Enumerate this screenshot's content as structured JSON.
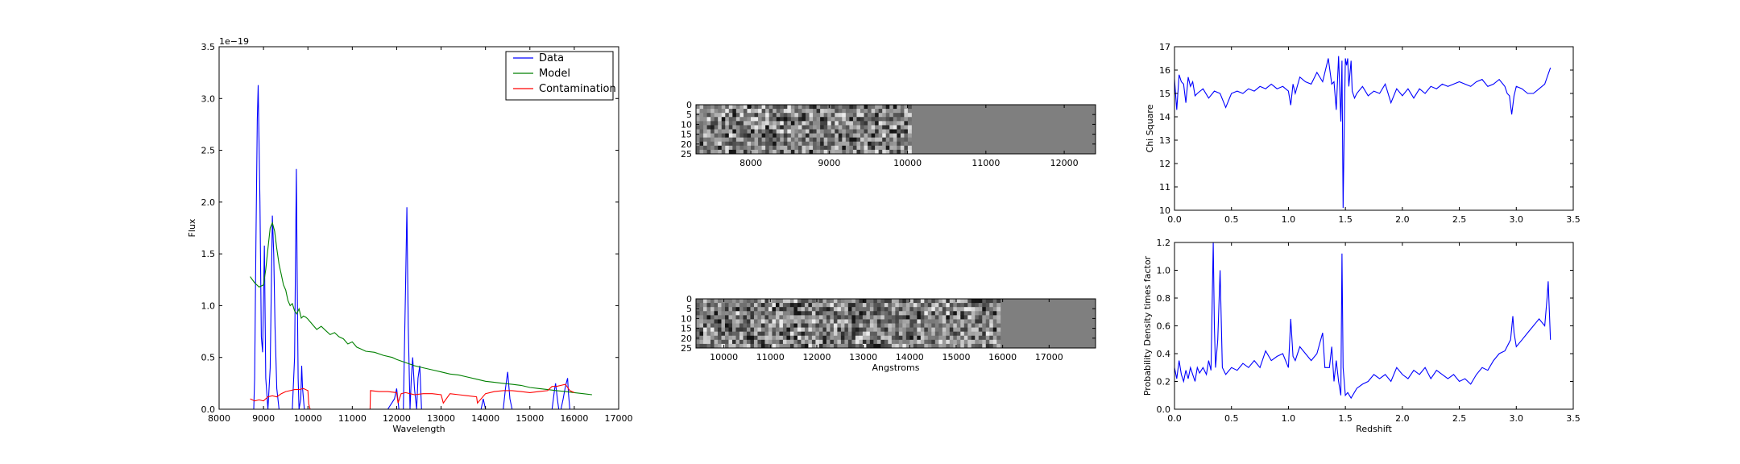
{
  "chart_data": [
    {
      "type": "line",
      "xlabel": "Wavelength",
      "ylabel": "Flux",
      "offset_text": "1e−19",
      "xlim": [
        8000,
        17000
      ],
      "ylim": [
        0,
        3.5
      ],
      "xticks": [
        8000,
        9000,
        10000,
        11000,
        12000,
        13000,
        14000,
        15000,
        16000,
        17000
      ],
      "yticks": [
        "0.0",
        "0.5",
        "1.0",
        "1.5",
        "2.0",
        "2.5",
        "3.0",
        "3.5"
      ],
      "legend_position": "top-right",
      "series": [
        {
          "name": "Data",
          "color": "#0000ff",
          "x": [
            8700,
            8780,
            8800,
            8830,
            8860,
            8880,
            8920,
            8950,
            8980,
            9020,
            9050,
            9100,
            9150,
            9200,
            9230,
            9260,
            9300,
            9350,
            9400,
            9450,
            9500,
            9550,
            9600,
            9650,
            9700,
            9740,
            9760,
            9780,
            9800,
            9840,
            9860,
            9880,
            9920,
            10000,
            10200,
            11800,
            11950,
            12000,
            12050,
            12150,
            12200,
            12230,
            12260,
            12300,
            12330,
            12360,
            12400,
            12450,
            12480,
            12520,
            12560,
            13000,
            13900,
            13950,
            14000,
            14400,
            14450,
            14500,
            14550,
            14600,
            14700,
            15400,
            15500,
            15560,
            15580,
            15620,
            15650,
            15700,
            15750,
            15800,
            15850,
            15870,
            15900,
            15960,
            16000,
            16400
          ],
          "y": [
            0,
            0,
            0.3,
            1.6,
            2.8,
            3.13,
            2.0,
            0.7,
            0.55,
            1.58,
            0.3,
            0,
            0.4,
            1.87,
            1.5,
            0.8,
            0.2,
            0,
            0,
            0,
            0,
            0,
            0,
            0,
            0.5,
            2.32,
            1.2,
            0.3,
            0,
            0.1,
            0.42,
            0.2,
            0,
            0,
            0,
            0,
            0.1,
            0.2,
            0,
            0,
            1.2,
            1.95,
            0.8,
            0,
            0.3,
            0.5,
            0.2,
            0,
            0.3,
            0.42,
            0,
            0,
            0,
            0.1,
            0,
            0,
            0.2,
            0.36,
            0.1,
            0,
            0,
            0,
            0,
            0.2,
            0.25,
            0.1,
            0,
            0,
            0.1,
            0.22,
            0.3,
            0.15,
            0,
            0,
            0,
            0
          ]
        },
        {
          "name": "Model",
          "color": "#008000",
          "x": [
            8700,
            8800,
            8900,
            9000,
            9050,
            9100,
            9150,
            9200,
            9250,
            9300,
            9350,
            9400,
            9450,
            9500,
            9550,
            9600,
            9650,
            9700,
            9750,
            9800,
            9850,
            9900,
            9950,
            10000,
            10100,
            10200,
            10300,
            10400,
            10500,
            10600,
            10700,
            10800,
            10900,
            11000,
            11100,
            11200,
            11300,
            11500,
            11700,
            11900,
            12000,
            12200,
            12400,
            12600,
            12800,
            13000,
            13200,
            13400,
            13600,
            13800,
            14000,
            14200,
            14400,
            14600,
            14800,
            15000,
            15200,
            15400,
            15600,
            15800,
            16000,
            16200,
            16400
          ],
          "y": [
            1.28,
            1.22,
            1.18,
            1.2,
            1.35,
            1.55,
            1.75,
            1.8,
            1.72,
            1.55,
            1.4,
            1.3,
            1.2,
            1.15,
            1.05,
            1.0,
            1.02,
            0.95,
            0.92,
            0.97,
            0.88,
            0.9,
            0.89,
            0.87,
            0.82,
            0.77,
            0.8,
            0.76,
            0.72,
            0.74,
            0.7,
            0.68,
            0.63,
            0.65,
            0.6,
            0.58,
            0.56,
            0.55,
            0.52,
            0.5,
            0.48,
            0.45,
            0.42,
            0.4,
            0.38,
            0.36,
            0.34,
            0.33,
            0.31,
            0.29,
            0.27,
            0.26,
            0.25,
            0.24,
            0.23,
            0.21,
            0.2,
            0.19,
            0.18,
            0.17,
            0.16,
            0.15,
            0.14
          ]
        },
        {
          "name": "Contamination",
          "color": "#ff0000",
          "x": [
            8700,
            8800,
            8900,
            9000,
            9100,
            9200,
            9300,
            9400,
            9500,
            9600,
            9700,
            9800,
            9900,
            10000,
            10020,
            10050,
            11400,
            11410,
            11600,
            11800,
            12000,
            12030,
            12100,
            12200,
            12300,
            12400,
            12600,
            12800,
            13000,
            13050,
            13200,
            13400,
            13600,
            13800,
            13820,
            14000,
            14200,
            14400,
            14600,
            14800,
            15000,
            15200,
            15400,
            15500,
            15600,
            15700,
            15800,
            15900,
            16000
          ],
          "y": [
            0.1,
            0.08,
            0.09,
            0.08,
            0.12,
            0.13,
            0.12,
            0.15,
            0.17,
            0.18,
            0.19,
            0.19,
            0.2,
            0.18,
            0.05,
            0,
            0,
            0.18,
            0.17,
            0.17,
            0.16,
            0.06,
            0.15,
            0.16,
            0.15,
            0.14,
            0.15,
            0.15,
            0.14,
            0.06,
            0.15,
            0.14,
            0.13,
            0.12,
            0.06,
            0.15,
            0.17,
            0.18,
            0.18,
            0.17,
            0.16,
            0.17,
            0.18,
            0.22,
            0.22,
            0.23,
            0.24,
            0.18,
            0.16
          ]
        }
      ]
    },
    {
      "type": "heatmap",
      "xlim": [
        7300,
        12400
      ],
      "ylim": [
        25,
        0
      ],
      "xticks": [
        8000,
        9000,
        10000,
        11000,
        12000
      ],
      "yticks": [
        0,
        5,
        10,
        15,
        20,
        25
      ],
      "noise_end": 10050,
      "grey": "#7f7f7f"
    },
    {
      "type": "heatmap",
      "xlabel": "Angstroms",
      "xlim": [
        9400,
        18000
      ],
      "ylim": [
        25,
        0
      ],
      "xticks": [
        10000,
        11000,
        12000,
        13000,
        14000,
        15000,
        16000,
        17000
      ],
      "yticks": [
        0,
        5,
        10,
        15,
        20,
        25
      ],
      "noise_end": 15950,
      "grey": "#7f7f7f"
    },
    {
      "type": "line",
      "ylabel": "Chi Square",
      "xlim": [
        0,
        3.5
      ],
      "ylim": [
        10,
        17
      ],
      "xticks": [
        "0.0",
        "0.5",
        "1.0",
        "1.5",
        "2.0",
        "2.5",
        "3.0",
        "3.5"
      ],
      "yticks": [
        10,
        11,
        12,
        13,
        14,
        15,
        16,
        17
      ],
      "series": [
        {
          "color": "#0000ff",
          "x": [
            0.0,
            0.02,
            0.04,
            0.06,
            0.08,
            0.1,
            0.12,
            0.14,
            0.16,
            0.18,
            0.2,
            0.25,
            0.3,
            0.35,
            0.4,
            0.45,
            0.5,
            0.55,
            0.6,
            0.65,
            0.7,
            0.75,
            0.8,
            0.85,
            0.9,
            0.95,
            1.0,
            1.02,
            1.04,
            1.06,
            1.1,
            1.15,
            1.2,
            1.25,
            1.3,
            1.32,
            1.35,
            1.38,
            1.4,
            1.42,
            1.44,
            1.46,
            1.47,
            1.48,
            1.49,
            1.5,
            1.51,
            1.52,
            1.53,
            1.55,
            1.56,
            1.58,
            1.6,
            1.65,
            1.7,
            1.75,
            1.8,
            1.85,
            1.9,
            1.95,
            2.0,
            2.05,
            2.1,
            2.15,
            2.2,
            2.25,
            2.3,
            2.35,
            2.4,
            2.45,
            2.5,
            2.55,
            2.6,
            2.65,
            2.7,
            2.75,
            2.8,
            2.85,
            2.9,
            2.92,
            2.94,
            2.96,
            2.98,
            3.0,
            3.05,
            3.1,
            3.15,
            3.2,
            3.25,
            3.3
          ],
          "y": [
            15.6,
            14.3,
            15.8,
            15.5,
            15.4,
            14.6,
            15.7,
            15.3,
            15.5,
            14.9,
            15.0,
            15.2,
            14.8,
            15.1,
            15.0,
            14.4,
            15.0,
            15.1,
            15.0,
            15.2,
            15.1,
            15.3,
            15.2,
            15.4,
            15.2,
            15.3,
            15.1,
            14.5,
            15.4,
            15.0,
            15.7,
            15.5,
            15.4,
            15.9,
            15.5,
            15.9,
            16.5,
            15.4,
            15.5,
            14.3,
            16.6,
            13.8,
            16.4,
            10.1,
            13.5,
            16.5,
            16.2,
            16.5,
            15.3,
            16.4,
            15.1,
            14.8,
            15.0,
            15.3,
            14.9,
            15.1,
            15.0,
            15.4,
            14.6,
            15.2,
            14.9,
            15.2,
            14.8,
            15.2,
            15.0,
            15.3,
            15.2,
            15.4,
            15.3,
            15.4,
            15.5,
            15.4,
            15.3,
            15.5,
            15.6,
            15.3,
            15.4,
            15.6,
            15.3,
            15.0,
            14.9,
            14.1,
            14.9,
            15.3,
            15.2,
            15.0,
            15.0,
            15.2,
            15.4,
            16.1
          ]
        }
      ]
    },
    {
      "type": "line",
      "xlabel": "Redshift",
      "ylabel": "Probability Density times factor",
      "xlim": [
        0,
        3.5
      ],
      "ylim": [
        0,
        1.2
      ],
      "xticks": [
        "0.0",
        "0.5",
        "1.0",
        "1.5",
        "2.0",
        "2.5",
        "3.0",
        "3.5"
      ],
      "yticks": [
        "0.0",
        "0.2",
        "0.4",
        "0.6",
        "0.8",
        "1.0",
        "1.2"
      ],
      "series": [
        {
          "color": "#0000ff",
          "x": [
            0.0,
            0.02,
            0.04,
            0.06,
            0.08,
            0.1,
            0.12,
            0.14,
            0.16,
            0.18,
            0.2,
            0.22,
            0.25,
            0.28,
            0.3,
            0.32,
            0.34,
            0.35,
            0.36,
            0.38,
            0.4,
            0.42,
            0.45,
            0.5,
            0.55,
            0.6,
            0.65,
            0.7,
            0.75,
            0.8,
            0.85,
            0.9,
            0.95,
            1.0,
            1.02,
            1.04,
            1.06,
            1.1,
            1.15,
            1.2,
            1.25,
            1.3,
            1.32,
            1.34,
            1.36,
            1.38,
            1.4,
            1.42,
            1.44,
            1.46,
            1.47,
            1.48,
            1.5,
            1.52,
            1.55,
            1.6,
            1.65,
            1.7,
            1.75,
            1.8,
            1.85,
            1.9,
            1.95,
            2.0,
            2.05,
            2.1,
            2.15,
            2.2,
            2.25,
            2.3,
            2.35,
            2.4,
            2.45,
            2.5,
            2.55,
            2.6,
            2.65,
            2.7,
            2.75,
            2.8,
            2.85,
            2.9,
            2.95,
            2.97,
            2.98,
            3.0,
            3.05,
            3.1,
            3.15,
            3.2,
            3.25,
            3.27,
            3.28,
            3.3
          ],
          "y": [
            0.3,
            0.22,
            0.35,
            0.25,
            0.2,
            0.28,
            0.22,
            0.3,
            0.25,
            0.2,
            0.3,
            0.26,
            0.3,
            0.25,
            0.35,
            0.28,
            1.2,
            0.6,
            0.3,
            0.5,
            1.0,
            0.3,
            0.25,
            0.3,
            0.28,
            0.33,
            0.3,
            0.35,
            0.3,
            0.42,
            0.35,
            0.38,
            0.4,
            0.3,
            0.65,
            0.38,
            0.35,
            0.45,
            0.4,
            0.35,
            0.4,
            0.55,
            0.3,
            0.3,
            0.3,
            0.45,
            0.2,
            0.35,
            0.2,
            0.1,
            1.12,
            0.3,
            0.1,
            0.12,
            0.08,
            0.15,
            0.18,
            0.2,
            0.25,
            0.22,
            0.25,
            0.2,
            0.3,
            0.25,
            0.22,
            0.28,
            0.25,
            0.3,
            0.22,
            0.28,
            0.25,
            0.22,
            0.25,
            0.2,
            0.22,
            0.18,
            0.25,
            0.3,
            0.28,
            0.35,
            0.4,
            0.42,
            0.5,
            0.67,
            0.55,
            0.45,
            0.5,
            0.55,
            0.6,
            0.65,
            0.6,
            0.8,
            0.92,
            0.5
          ]
        }
      ]
    }
  ]
}
